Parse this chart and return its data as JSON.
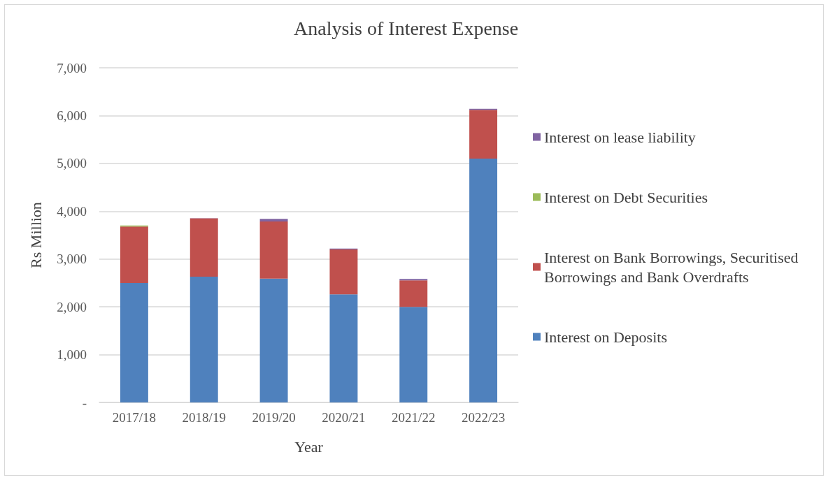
{
  "chart_data": {
    "type": "bar",
    "title": "Analysis of Interest Expense",
    "xlabel": "Year",
    "ylabel": "Rs Million",
    "categories": [
      "2017/18",
      "2018/19",
      "2019/20",
      "2020/21",
      "2021/22",
      "2022/23"
    ],
    "stacked": true,
    "series": [
      {
        "name": "Interest on Deposits",
        "color": "#4f81bd",
        "values": [
          2500,
          2630,
          2590,
          2260,
          2000,
          5100
        ]
      },
      {
        "name": "Interest on Bank Borrowings, Securitised Borrowings and Bank Overdrafts",
        "color": "#c0504d",
        "values": [
          1180,
          1220,
          1195,
          940,
          553,
          1020
        ]
      },
      {
        "name": "Interest on Debt Securities",
        "color": "#9bbb59",
        "values": [
          20,
          0,
          0,
          0,
          0,
          0
        ]
      },
      {
        "name": "Interest on lease liability",
        "color": "#8064a2",
        "values": [
          0,
          5,
          55,
          20,
          30,
          20
        ]
      }
    ],
    "ylim": [
      0,
      7000
    ],
    "yticks": [
      {
        "value": 0,
        "label": "-"
      },
      {
        "value": 1000,
        "label": "1,000"
      },
      {
        "value": 2000,
        "label": "2,000"
      },
      {
        "value": 3000,
        "label": "3,000"
      },
      {
        "value": 4000,
        "label": "4,000"
      },
      {
        "value": 5000,
        "label": "5,000"
      },
      {
        "value": 6000,
        "label": "6,000"
      },
      {
        "value": 7000,
        "label": "7,000"
      }
    ],
    "grid": "y",
    "legend": "right"
  }
}
